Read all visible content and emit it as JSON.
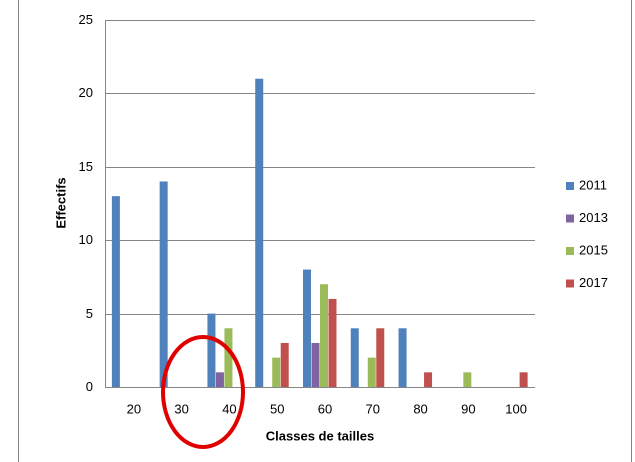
{
  "chart_data": {
    "type": "bar",
    "x_label": "Classes de tailles",
    "y_label": "Effectifs",
    "categories": [
      "20",
      "30",
      "40",
      "50",
      "60",
      "70",
      "80",
      "90",
      "100"
    ],
    "series": [
      {
        "name": "2011",
        "color": "#4f81bd",
        "values": [
          13,
          14,
          5,
          21,
          8,
          4,
          4,
          0,
          0
        ]
      },
      {
        "name": "2013",
        "color": "#8064a2",
        "values": [
          0,
          0,
          1,
          0,
          3,
          0,
          0,
          0,
          0
        ]
      },
      {
        "name": "2015",
        "color": "#9bbb59",
        "values": [
          0,
          0,
          4,
          2,
          7,
          2,
          0,
          1,
          0
        ]
      },
      {
        "name": "2017",
        "color": "#c0504d",
        "values": [
          0,
          0,
          0,
          3,
          6,
          4,
          1,
          0,
          1
        ]
      }
    ],
    "ylim": [
      0,
      25
    ],
    "yticks": [
      0,
      5,
      10,
      15,
      20,
      25
    ],
    "grid": true,
    "legend": "right"
  }
}
